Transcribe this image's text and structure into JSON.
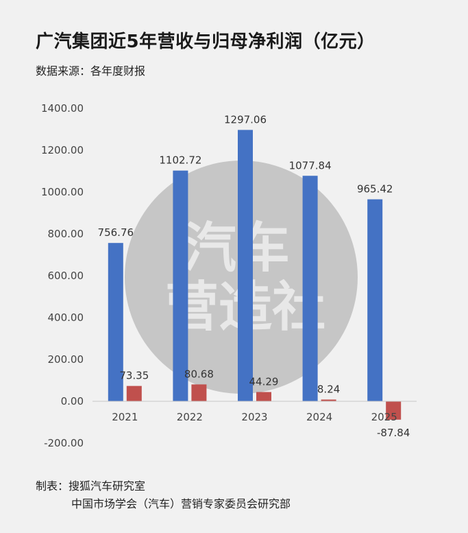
{
  "title": "广汽集团近5年营收与归母净利润（亿元）",
  "subtitle": "数据来源：各年度财报",
  "footer": {
    "line1": "制表：搜狐汽车研究室",
    "line2": "中国市场学会（汽车）营销专家委员会研究部"
  },
  "watermark": {
    "line1": "汽车",
    "line2": "营造社"
  },
  "colors": {
    "revenue": "#4472c4",
    "profit": "#c0504d",
    "background": "#f1f1f1"
  },
  "chart_data": {
    "type": "bar",
    "categories": [
      "2021",
      "2022",
      "2023",
      "2024",
      "2025"
    ],
    "series": [
      {
        "values": [
          756.76,
          1102.72,
          1297.06,
          1077.84,
          965.42
        ]
      },
      {
        "values": [
          73.35,
          80.68,
          44.29,
          8.24,
          -87.84
        ]
      }
    ],
    "value_labels": [
      [
        "756.76",
        "1102.72",
        "1297.06",
        "1077.84",
        "965.42"
      ],
      [
        "73.35",
        "80.68",
        "44.29",
        "8.24",
        "-87.84"
      ]
    ],
    "yticks": [
      "1400.00",
      "1200.00",
      "1000.00",
      "800.00",
      "600.00",
      "400.00",
      "200.00",
      "0.00",
      "-200.00"
    ],
    "ylim": [
      -200,
      1400
    ],
    "grid": false,
    "legend": "none"
  }
}
